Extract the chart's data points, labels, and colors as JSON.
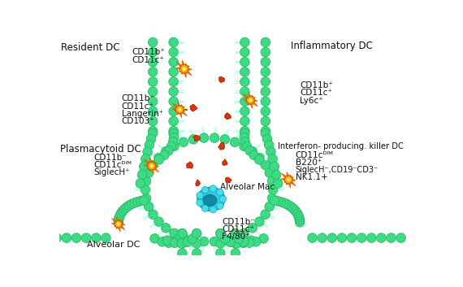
{
  "bg_color": "#ffffff",
  "gc": "#3ddc84",
  "go": "#2ab86a",
  "cc": "#aaffdd",
  "dc_color": "#ffaa00",
  "dc_outline": "#cc5500",
  "dc_spike": "#ff7700",
  "mac_color": "#33ccdd",
  "mac_outline": "#1199aa",
  "red_color": "#dd3300",
  "labels": {
    "resident_dc": "Resident DC",
    "inflammatory_dc": "Inflammatory DC",
    "plasmacytoid_dc": "Plasmacytoid DC",
    "interferon_dc": "Interferon- producing. killer DC",
    "alveolar_mac": "Alveolar Mac",
    "alveolar_dc": "Alveolar DC",
    "r1": [
      "CD11b⁺",
      "CD11c⁺"
    ],
    "r2": [
      "CD11b⁻",
      "CD11c⁺",
      "Langerin⁺",
      "CD103⁺"
    ],
    "inf": [
      "CD11b⁺",
      "CD11c⁺",
      "Ly6c⁺"
    ],
    "pdc": [
      "CD11b⁻",
      "CD11cᴰᴵᴹ",
      "SiglecH⁺"
    ],
    "ikdc": [
      "CD11cᴰᴵᴹ",
      "B220⁺",
      "SiglecH⁻,CD19⁻CD3⁻",
      "NK1.1+"
    ],
    "mac": [
      "CD11b⁻",
      "CD11c⁺",
      "F4/80⁺"
    ]
  }
}
